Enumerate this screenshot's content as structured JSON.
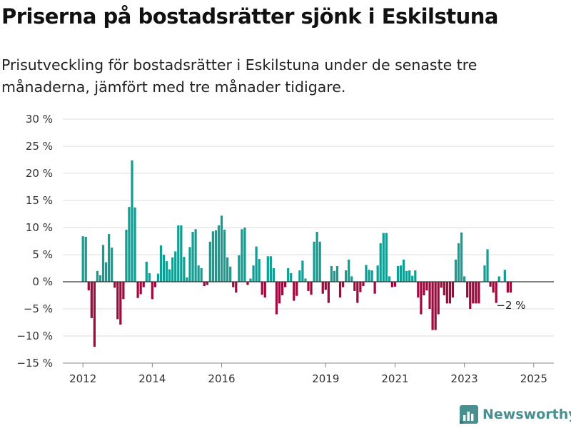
{
  "header": {
    "title": "Priserna på bostadsrätter sjönk i Eskilstuna",
    "subtitle": "Prisutveckling för bostadsrätter i Eskilstuna under de senaste tre månaderna, jämfört med tre månader tidigare."
  },
  "brand": {
    "name": "Newsworthy"
  },
  "colors": {
    "positive": "#139e94",
    "negative": "#a0093e",
    "grid": "#dddddd",
    "text": "#333333"
  },
  "chart_data": {
    "type": "bar",
    "xlabel": "",
    "ylabel": "",
    "ylim": [
      -15,
      30
    ],
    "yticks": [
      30,
      25,
      20,
      15,
      10,
      5,
      0,
      -5,
      -10,
      -15
    ],
    "ytick_labels": [
      "30 %",
      "25 %",
      "20 %",
      "15 %",
      "10 %",
      "5 %",
      "0 %",
      "−5 %",
      "−10 %",
      "−15 %"
    ],
    "xlim": [
      2011.42,
      2025.58
    ],
    "xticks": [
      {
        "label": "2012",
        "year": 2012
      },
      {
        "label": "2014",
        "year": 2014
      },
      {
        "label": "2016",
        "year": 2016
      },
      {
        "label": "2019",
        "year": 2019
      },
      {
        "label": "2021",
        "year": 2021
      },
      {
        "label": "2023",
        "year": 2023
      },
      {
        "label": "2025",
        "year": 2025
      }
    ],
    "start": "2012-01",
    "grid": true,
    "annotation": {
      "text": "−2 %",
      "value": -2
    },
    "values": [
      8.4,
      8.3,
      -1.6,
      -6.7,
      -12.0,
      2.0,
      1.2,
      6.8,
      3.6,
      8.8,
      6.3,
      -1.1,
      -6.9,
      -7.9,
      -3.2,
      9.6,
      13.8,
      22.4,
      13.7,
      -3.0,
      -2.3,
      -1.0,
      3.7,
      1.6,
      -3.2,
      -1.0,
      1.5,
      6.7,
      5.0,
      3.8,
      2.3,
      4.5,
      5.6,
      10.4,
      10.4,
      4.6,
      0.8,
      6.4,
      9.2,
      9.7,
      3.0,
      2.5,
      -0.8,
      -0.6,
      7.4,
      9.3,
      9.5,
      10.4,
      12.2,
      9.6,
      4.5,
      2.8,
      -1.0,
      -2.0,
      4.9,
      9.7,
      10.0,
      -0.6,
      0.6,
      3.0,
      6.5,
      4.2,
      -2.4,
      -2.9,
      4.7,
      4.7,
      2.5,
      -6.0,
      -4.0,
      -2.5,
      -1.0,
      2.5,
      1.6,
      -3.5,
      -2.6,
      2.1,
      3.9,
      0.6,
      -1.7,
      -2.4,
      7.4,
      9.2,
      7.4,
      -2.2,
      -1.5,
      -3.9,
      2.9,
      2.0,
      2.9,
      -2.9,
      -1.0,
      2.1,
      4.1,
      1.0,
      -1.7,
      -3.9,
      -1.9,
      -0.8,
      3.1,
      2.2,
      2.1,
      -2.2,
      3.0,
      7.1,
      9.0,
      9.0,
      1.0,
      -1.0,
      -0.9,
      2.9,
      3.0,
      4.1,
      2.0,
      2.1,
      1.1,
      2.1,
      -2.9,
      -6.0,
      -2.5,
      -1.6,
      -5.0,
      -8.9,
      -8.9,
      -6.0,
      -1.1,
      -2.5,
      -4.0,
      -4.0,
      -2.9,
      4.1,
      7.1,
      9.1,
      1.0,
      -2.9,
      -5.0,
      -4.0,
      -4.0,
      -4.0,
      -0.1,
      3.0,
      6.0,
      -0.9,
      -2.0,
      -3.9,
      1.0,
      -0.1,
      2.2,
      -2.0,
      -2.0
    ]
  }
}
